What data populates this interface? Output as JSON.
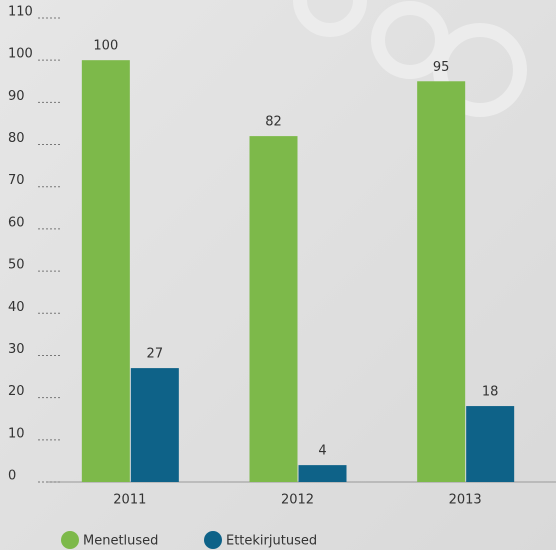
{
  "chart_data": {
    "type": "bar",
    "categories": [
      "2011",
      "2012",
      "2013"
    ],
    "series": [
      {
        "name": "Menetlused",
        "color": "#7db94a",
        "values": [
          100,
          82,
          95
        ]
      },
      {
        "name": "Ettekirjutused",
        "color": "#0e6288",
        "values": [
          27,
          4,
          18
        ]
      }
    ],
    "ylim": [
      0,
      110
    ],
    "yticks": [
      0,
      10,
      20,
      30,
      40,
      50,
      60,
      70,
      80,
      90,
      100,
      110
    ],
    "grid": true
  }
}
